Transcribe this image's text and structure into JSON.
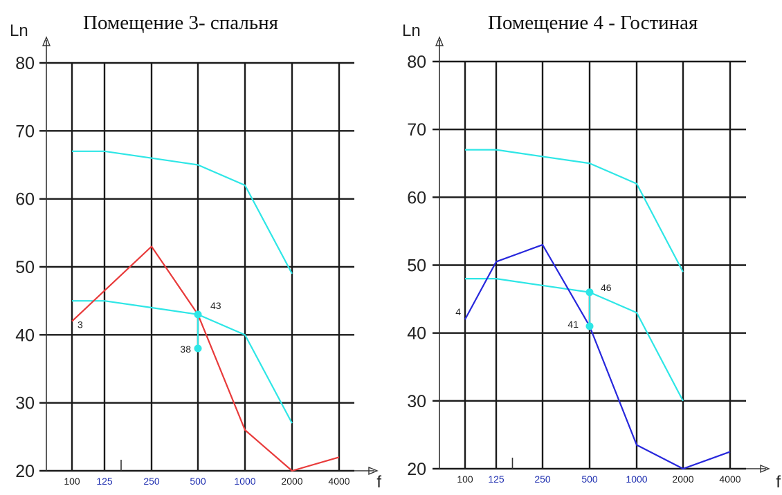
{
  "chart_data": [
    {
      "type": "line",
      "title": "Помещение 3- спальня",
      "ylabel": "Ln",
      "xlabel": "f",
      "ylim": [
        20,
        80
      ],
      "yticks": [
        "80",
        "70",
        "60",
        "50",
        "40",
        "30",
        "20"
      ],
      "x_tick_labels": [
        "100",
        "125",
        "250",
        "500",
        "1000",
        "2000",
        "4000"
      ],
      "x_tick_colors": [
        "#222222",
        "#1f2fb0",
        "#1f2fb0",
        "#1f2fb0",
        "#1f2fb0",
        "#222222",
        "#222222"
      ],
      "grid": true,
      "series": [
        {
          "color": "#2ee6e6",
          "x": [
            "100",
            "125",
            "250",
            "500",
            "1000",
            "2000"
          ],
          "values": [
            67,
            67,
            66,
            65,
            62,
            49
          ]
        },
        {
          "color": "#2ee6e6",
          "x": [
            "100",
            "125",
            "250",
            "500",
            "1000",
            "2000"
          ],
          "values": [
            45,
            45,
            44,
            43,
            40,
            27
          ]
        },
        {
          "color": "#e83a3a",
          "x": [
            "100",
            "250",
            "500",
            "1000",
            "2000",
            "4000"
          ],
          "values": [
            42,
            53,
            43,
            26,
            20,
            22
          ]
        }
      ],
      "markers": [
        {
          "x": "500",
          "y": 43,
          "color": "#2ee6e6"
        },
        {
          "x": "500",
          "y": 38,
          "color": "#2ee6e6"
        }
      ],
      "annotations": [
        {
          "text": "43",
          "x": "500",
          "y": 43
        },
        {
          "text": "38",
          "x": "500",
          "y": 38
        },
        {
          "text": "3",
          "x": "100",
          "y": 42
        }
      ]
    },
    {
      "type": "line",
      "title": "Помещение 4 - Гостиная",
      "ylabel": "Ln",
      "xlabel": "f",
      "ylim": [
        20,
        80
      ],
      "yticks": [
        "80",
        "70",
        "60",
        "50",
        "40",
        "30",
        "20"
      ],
      "x_tick_labels": [
        "100",
        "125",
        "250",
        "500",
        "1000",
        "2000",
        "4000"
      ],
      "x_tick_colors": [
        "#222222",
        "#1f2fb0",
        "#1f2fb0",
        "#1f2fb0",
        "#1f2fb0",
        "#222222",
        "#222222"
      ],
      "grid": true,
      "series": [
        {
          "color": "#2ee6e6",
          "x": [
            "100",
            "125",
            "250",
            "500",
            "1000",
            "2000"
          ],
          "values": [
            67,
            67,
            66,
            65,
            62,
            49
          ]
        },
        {
          "color": "#2ee6e6",
          "x": [
            "100",
            "125",
            "250",
            "500",
            "1000",
            "2000"
          ],
          "values": [
            48,
            48,
            47,
            46,
            43,
            30
          ]
        },
        {
          "color": "#2727dc",
          "x": [
            "100",
            "125",
            "250",
            "500",
            "1000",
            "2000",
            "4000"
          ],
          "values": [
            42,
            50.5,
            53,
            41,
            23.5,
            20,
            22.5
          ]
        }
      ],
      "markers": [
        {
          "x": "500",
          "y": 46,
          "color": "#2ee6e6"
        },
        {
          "x": "500",
          "y": 41,
          "color": "#2ee6e6"
        }
      ],
      "annotations": [
        {
          "text": "46",
          "x": "500",
          "y": 46
        },
        {
          "text": "41",
          "x": "500",
          "y": 41
        },
        {
          "text": "4",
          "x": "100",
          "y": 42
        }
      ]
    }
  ]
}
